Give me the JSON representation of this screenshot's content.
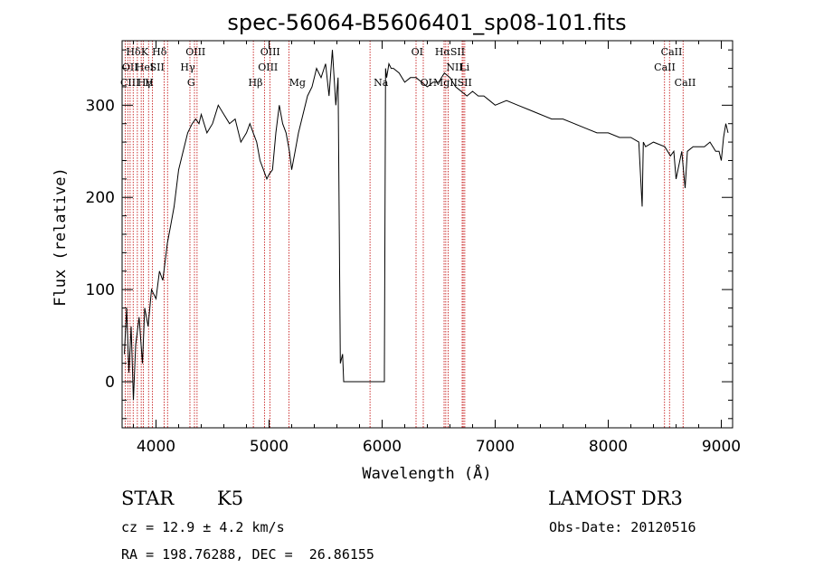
{
  "chart_data": {
    "type": "line",
    "title": "spec-56064-B5606401_sp08-101.fits",
    "xlabel": "Wavelength (Å)",
    "ylabel": "Flux (relative)",
    "xlim": [
      3700,
      9100
    ],
    "ylim": [
      -50,
      370
    ],
    "xticks": [
      4000,
      5000,
      6000,
      7000,
      8000,
      9000
    ],
    "yticks": [
      0,
      100,
      200,
      300
    ],
    "series": [
      {
        "name": "flux",
        "x": [
          3720,
          3740,
          3760,
          3780,
          3800,
          3820,
          3850,
          3880,
          3900,
          3930,
          3960,
          4000,
          4030,
          4060,
          4100,
          4130,
          4160,
          4200,
          4240,
          4280,
          4320,
          4350,
          4380,
          4400,
          4450,
          4500,
          4550,
          4600,
          4650,
          4700,
          4750,
          4800,
          4830,
          4860,
          4890,
          4920,
          4950,
          4980,
          5000,
          5030,
          5060,
          5090,
          5120,
          5150,
          5180,
          5200,
          5230,
          5260,
          5300,
          5340,
          5380,
          5420,
          5460,
          5500,
          5530,
          5560,
          5590,
          5610,
          5630,
          5650,
          5660,
          5660,
          6020,
          6020,
          6030,
          6040,
          6060,
          6080,
          6100,
          6150,
          6200,
          6250,
          6300,
          6350,
          6400,
          6450,
          6500,
          6550,
          6600,
          6650,
          6700,
          6750,
          6800,
          6850,
          6900,
          6950,
          7000,
          7100,
          7200,
          7300,
          7400,
          7500,
          7600,
          7700,
          7800,
          7900,
          8000,
          8100,
          8200,
          8270,
          8300,
          8310,
          8330,
          8400,
          8500,
          8550,
          8580,
          8600,
          8650,
          8680,
          8700,
          8750,
          8800,
          8850,
          8900,
          8950,
          8980,
          9000,
          9020,
          9040,
          9060
        ],
        "y": [
          30,
          80,
          10,
          60,
          -20,
          40,
          70,
          20,
          80,
          60,
          100,
          90,
          120,
          110,
          150,
          170,
          190,
          230,
          250,
          270,
          280,
          285,
          280,
          290,
          270,
          280,
          300,
          290,
          280,
          285,
          260,
          270,
          280,
          270,
          260,
          240,
          230,
          220,
          225,
          230,
          270,
          300,
          280,
          270,
          250,
          230,
          250,
          270,
          290,
          310,
          320,
          340,
          330,
          345,
          310,
          360,
          300,
          330,
          20,
          30,
          0,
          0,
          0,
          10,
          340,
          330,
          345,
          340,
          340,
          335,
          325,
          330,
          330,
          325,
          320,
          325,
          325,
          335,
          330,
          320,
          315,
          310,
          315,
          310,
          310,
          305,
          300,
          305,
          300,
          295,
          290,
          285,
          285,
          280,
          275,
          270,
          270,
          265,
          265,
          260,
          190,
          260,
          255,
          260,
          255,
          245,
          250,
          220,
          250,
          210,
          250,
          255,
          255,
          255,
          260,
          250,
          250,
          240,
          265,
          280,
          270
        ]
      }
    ],
    "lines_top": [
      "Hδ",
      "K",
      "Hδ",
      "OIII",
      "OIII",
      "OI",
      "HαSII",
      "CaII"
    ],
    "lines_mid": [
      "OII",
      "HeI",
      "SII",
      "Hγ",
      "OIII",
      "NII",
      "Li",
      "CaII"
    ],
    "lines_bot": [
      "CIII",
      "Hγ",
      "H",
      "G",
      "Hβ",
      "Mg",
      "Na",
      "OI",
      "MgII",
      "SII",
      "CaII"
    ]
  },
  "info": {
    "class_label": "STAR",
    "subclass": "K5",
    "survey": "LAMOST DR3",
    "cz": "cz = 12.9 ± 4.2 km/s",
    "obs_date": "Obs-Date: 20120516",
    "coords": "RA = 198.76288, DEC =  26.86155"
  }
}
